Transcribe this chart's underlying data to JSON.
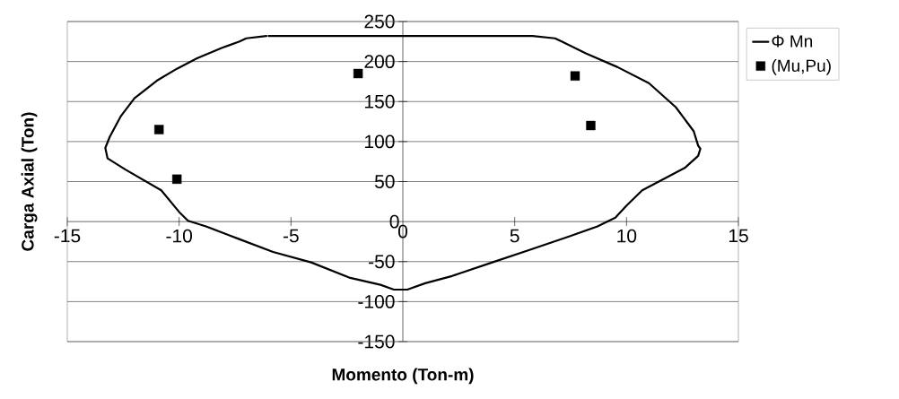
{
  "chart_data": {
    "type": "line",
    "xlabel": "Momento (Ton-m)",
    "ylabel": "Carga Axial (Ton)",
    "xlim": [
      -15,
      15
    ],
    "ylim": [
      -150,
      250
    ],
    "xticks": [
      -15,
      -10,
      -5,
      0,
      5,
      10,
      15
    ],
    "yticks": [
      -150,
      -100,
      -50,
      0,
      50,
      100,
      150,
      200,
      250
    ],
    "grid": "y",
    "legend": "top right",
    "series": [
      {
        "name": "Φ Mn",
        "color": "#000000",
        "marker": "none",
        "line_style": "solid",
        "x": [
          -6,
          5.8,
          6.8,
          7.1,
          8.2,
          9.6,
          11.0,
          12.2,
          13.0,
          13.2,
          13.3,
          13.2,
          12.6,
          10.7,
          10.0,
          9.5,
          8.7,
          7.4,
          5.6,
          4.0,
          2.2,
          1.0,
          0.2,
          -0.4,
          -1.0,
          -2.4,
          -4.1,
          -5.8,
          -7.4,
          -8.8,
          -9.6,
          -10.0,
          -10.8,
          -12.4,
          -13.2,
          -13.3,
          -13.1,
          -12.6,
          -12.0,
          -11.0,
          -10.1,
          -9.2,
          -8.1,
          -7.3,
          -7.0,
          -6.1
        ],
        "values": [
          232,
          232,
          229,
          225,
          210,
          193,
          173,
          143,
          113,
          95,
          91,
          82,
          67,
          39,
          20,
          5,
          -6,
          -19,
          -36,
          -51,
          -68,
          -77,
          -85,
          -85,
          -79,
          -70,
          -51,
          -38,
          -21,
          -6,
          1,
          12,
          39,
          65,
          79,
          92,
          106,
          132,
          154,
          176,
          191,
          204,
          217,
          225,
          229,
          232
        ]
      },
      {
        "name": "(Mu,Pu)",
        "type": "scatter",
        "color": "#000000",
        "marker": "square",
        "x": [
          -10.9,
          -10.1,
          -2.0,
          7.7,
          8.4
        ],
        "values": [
          115,
          53,
          185,
          182,
          120
        ]
      }
    ]
  }
}
